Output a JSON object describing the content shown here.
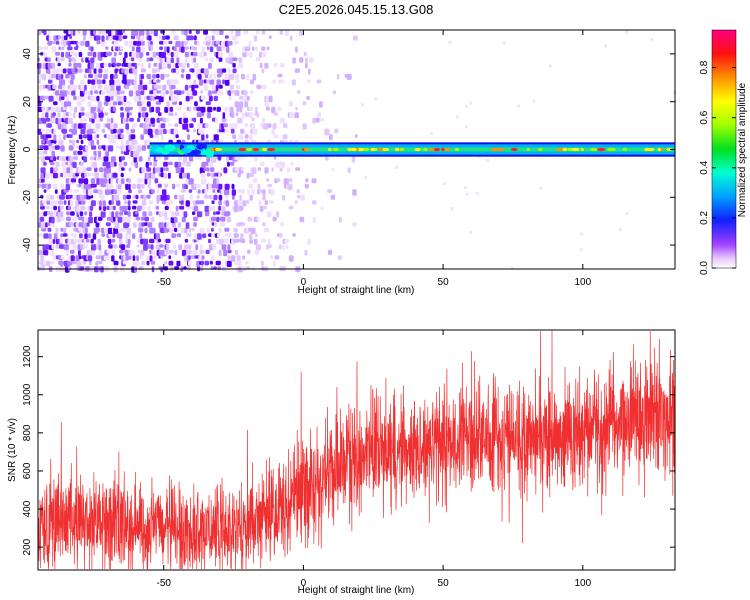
{
  "title": "C2E5.2026.045.15.13.G08",
  "colors": {
    "snr_line": "#f03030",
    "axis": "#000000",
    "specgram_bg": "#ffffff"
  },
  "chart_data": [
    {
      "type": "heatmap",
      "name": "spectrogram",
      "xlabel": "Height of straight line (km)",
      "ylabel": "Frequency (Hz)",
      "xlim": [
        -95,
        133
      ],
      "ylim": [
        -50,
        50
      ],
      "xticks": [
        -50,
        0,
        50,
        100
      ],
      "yticks": [
        -40,
        -20,
        0,
        20,
        40
      ],
      "colorbar": {
        "label": "Normalized spectral amplitude",
        "range": [
          0.0,
          0.95
        ],
        "ticks": [
          "0.0",
          "0.2",
          "0.4",
          "0.6",
          "0.8"
        ],
        "tick_values": [
          0.0,
          0.2,
          0.4,
          0.6,
          0.8
        ]
      },
      "features": {
        "signal_band_center_hz": 0,
        "signal_band_half_width_hz": 3,
        "signal_start_km": -55,
        "dense_noise_region_km": [
          -95,
          -25
        ],
        "sparse_noise_region_km": [
          -25,
          5
        ]
      }
    },
    {
      "type": "line",
      "name": "snr",
      "xlabel": "Height of straight line (km)",
      "ylabel": "SNR (10 * v/v)",
      "xlim": [
        -95,
        133
      ],
      "ylim": [
        80,
        1340
      ],
      "xticks": [
        -50,
        0,
        50,
        100
      ],
      "yticks": [
        200,
        400,
        600,
        800,
        1000,
        1200
      ],
      "envelope": {
        "x_km": [
          -95,
          -80,
          -65,
          -55,
          -45,
          -35,
          -25,
          -15,
          -5,
          5,
          15,
          25,
          40,
          55,
          70,
          85,
          100,
          115,
          133
        ],
        "mean_snr": [
          330,
          340,
          320,
          300,
          290,
          280,
          300,
          360,
          430,
          560,
          640,
          700,
          730,
          760,
          780,
          790,
          820,
          860,
          920
        ],
        "spread": [
          150,
          150,
          145,
          140,
          135,
          130,
          140,
          150,
          170,
          190,
          190,
          190,
          180,
          180,
          180,
          180,
          185,
          190,
          200
        ]
      }
    }
  ]
}
